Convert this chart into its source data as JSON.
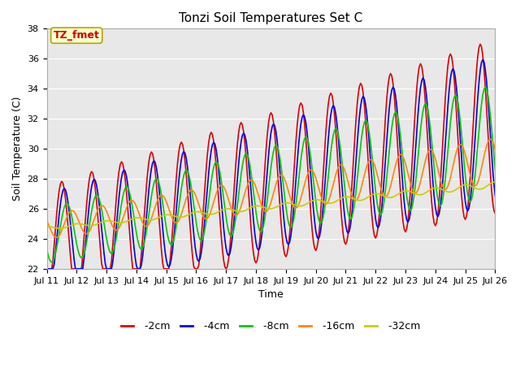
{
  "title": "Tonzi Soil Temperatures Set C",
  "xlabel": "Time",
  "ylabel": "Soil Temperature (C)",
  "ylim": [
    22,
    38
  ],
  "xlim": [
    0,
    360
  ],
  "fig_facecolor": "#ffffff",
  "plot_bg_color": "#e8e8e8",
  "annotation_text": "TZ_fmet",
  "annotation_color": "#cc0000",
  "annotation_bg": "#ffffcc",
  "annotation_border": "#aaaa00",
  "series": {
    "-2cm": {
      "color": "#dd0000",
      "lw": 1.2
    },
    "-4cm": {
      "color": "#0000ee",
      "lw": 1.2
    },
    "-8cm": {
      "color": "#00cc00",
      "lw": 1.2
    },
    "-16cm": {
      "color": "#ff8800",
      "lw": 1.2
    },
    "-32cm": {
      "color": "#cccc00",
      "lw": 1.2
    }
  },
  "xtick_labels": [
    "Jul 11",
    "Jul 12",
    "Jul 13",
    "Jul 14",
    "Jul 15",
    "Jul 16",
    "Jul 17",
    "Jul 18",
    "Jul 19",
    "Jul 20",
    "Jul 21",
    "Jul 22",
    "Jul 23",
    "Jul 24",
    "Jul 25",
    "Jul 26"
  ],
  "xtick_positions": [
    0,
    24,
    48,
    72,
    96,
    120,
    144,
    168,
    192,
    216,
    240,
    264,
    288,
    312,
    336,
    360
  ],
  "ytick_labels": [
    "22",
    "24",
    "26",
    "28",
    "30",
    "32",
    "34",
    "36",
    "38"
  ],
  "ytick_values": [
    22,
    24,
    26,
    28,
    30,
    32,
    34,
    36,
    38
  ],
  "grid_color": "#ffffff",
  "title_fontsize": 11,
  "axis_fontsize": 9,
  "tick_fontsize": 8
}
